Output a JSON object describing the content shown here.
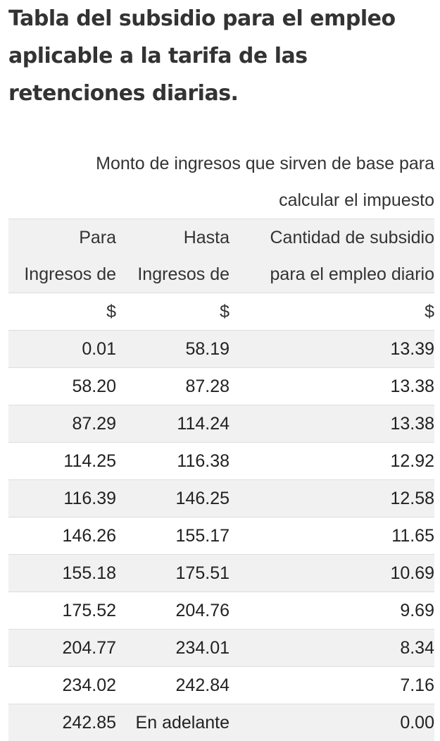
{
  "title": "Tabla del subsidio para el empleo aplicable a la tarifa de las retenciones diarias.",
  "table": {
    "group_header_line1": "Monto de ingresos que sirven de base para",
    "group_header_line2": "calcular el impuesto",
    "col1_header_line1": "Para",
    "col1_header_line2": "Ingresos de",
    "col2_header_line1": "Hasta",
    "col2_header_line2": "Ingresos de",
    "col3_header_line1": "Cantidad de subsidio",
    "col3_header_line2": "para el empleo diario",
    "currency_row": [
      "$",
      "$",
      "$"
    ],
    "rows": [
      [
        "0.01",
        "58.19",
        "13.39"
      ],
      [
        "58.20",
        "87.28",
        "13.38"
      ],
      [
        "87.29",
        "114.24",
        "13.38"
      ],
      [
        "114.25",
        "116.38",
        "12.92"
      ],
      [
        "116.39",
        "146.25",
        "12.58"
      ],
      [
        "146.26",
        "155.17",
        "11.65"
      ],
      [
        "155.18",
        "175.51",
        "10.69"
      ],
      [
        "175.52",
        "204.76",
        "9.69"
      ],
      [
        "204.77",
        "234.01",
        "8.34"
      ],
      [
        "234.02",
        "242.84",
        "7.16"
      ],
      [
        "242.85",
        "En adelante",
        "0.00"
      ]
    ]
  }
}
